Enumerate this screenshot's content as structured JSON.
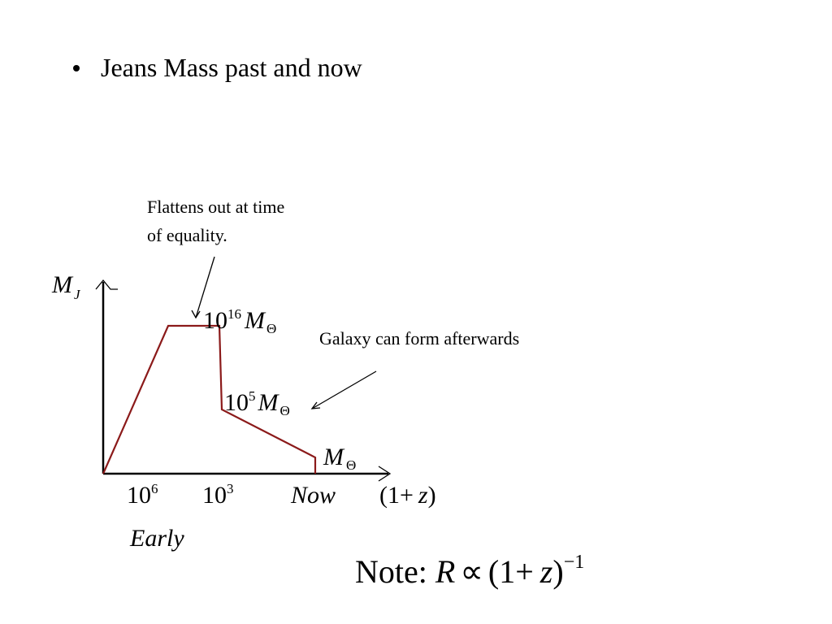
{
  "slide": {
    "bullet": "Jeans Mass past and now"
  },
  "diagram": {
    "y_axis_label": {
      "base": "M",
      "sub": "J"
    },
    "x_axis_label": {
      "open": "(1+",
      "var": "z",
      "close": ")"
    },
    "annotations": [
      {
        "lines": [
          "Flattens out at time",
          "of equality."
        ]
      },
      {
        "lines": [
          "Galaxy can form afterwards"
        ]
      }
    ],
    "levels": [
      {
        "base": "10",
        "exp": "16",
        "unit": "M",
        "unit_sub": "Θ"
      },
      {
        "base": "10",
        "exp": "5",
        "unit": "M",
        "unit_sub": "Θ"
      },
      {
        "unit": "M",
        "unit_sub": "Θ"
      }
    ],
    "x_labels": [
      {
        "base": "10",
        "exp": "6"
      },
      {
        "base": "10",
        "exp": "3"
      },
      {
        "text": "Now"
      }
    ],
    "early": "Early"
  },
  "note": {
    "label": "Note:",
    "var": "R",
    "relation": "∝",
    "open": "(1+",
    "z": "z",
    "close": ")",
    "exponent": "−1"
  }
}
